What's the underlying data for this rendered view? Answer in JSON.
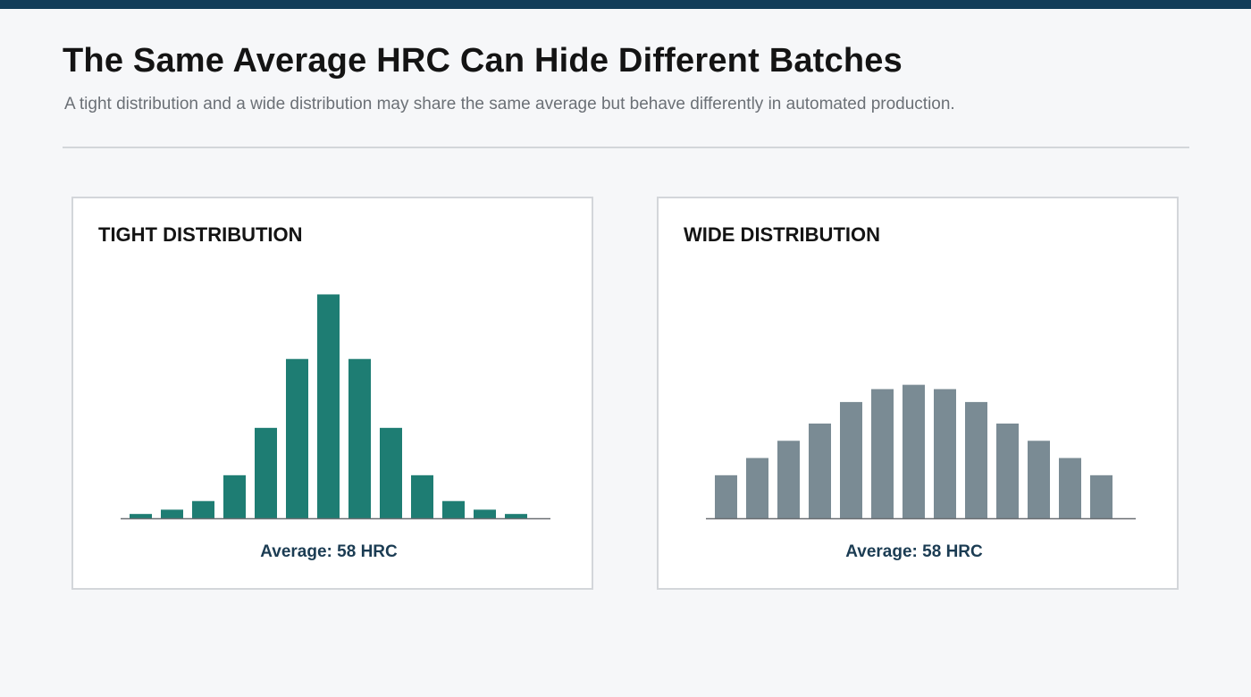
{
  "header": {
    "title": "The Same Average HRC Can Hide Different Batches",
    "subtitle": "A tight distribution and a wide distribution may share the same average but behave differently in automated production."
  },
  "colors": {
    "accent_bar": "#123d58",
    "tight_bars": "#1e7d73",
    "wide_bars": "#7a8b94",
    "axis": "#6b6f73"
  },
  "chart_data": [
    {
      "type": "bar",
      "title": "TIGHT DISTRIBUTION",
      "values": [
        1,
        2,
        4,
        10,
        21,
        37,
        52,
        37,
        21,
        10,
        4,
        2,
        1
      ],
      "ylim": [
        0,
        55
      ],
      "annotation": "Average: 58 HRC",
      "grid": false,
      "legend": "none"
    },
    {
      "type": "bar",
      "title": "WIDE DISTRIBUTION",
      "values": [
        10,
        14,
        18,
        22,
        27,
        30,
        31,
        30,
        27,
        22,
        18,
        14,
        10
      ],
      "ylim": [
        0,
        55
      ],
      "annotation": "Average: 58 HRC",
      "grid": false,
      "legend": "none"
    }
  ]
}
